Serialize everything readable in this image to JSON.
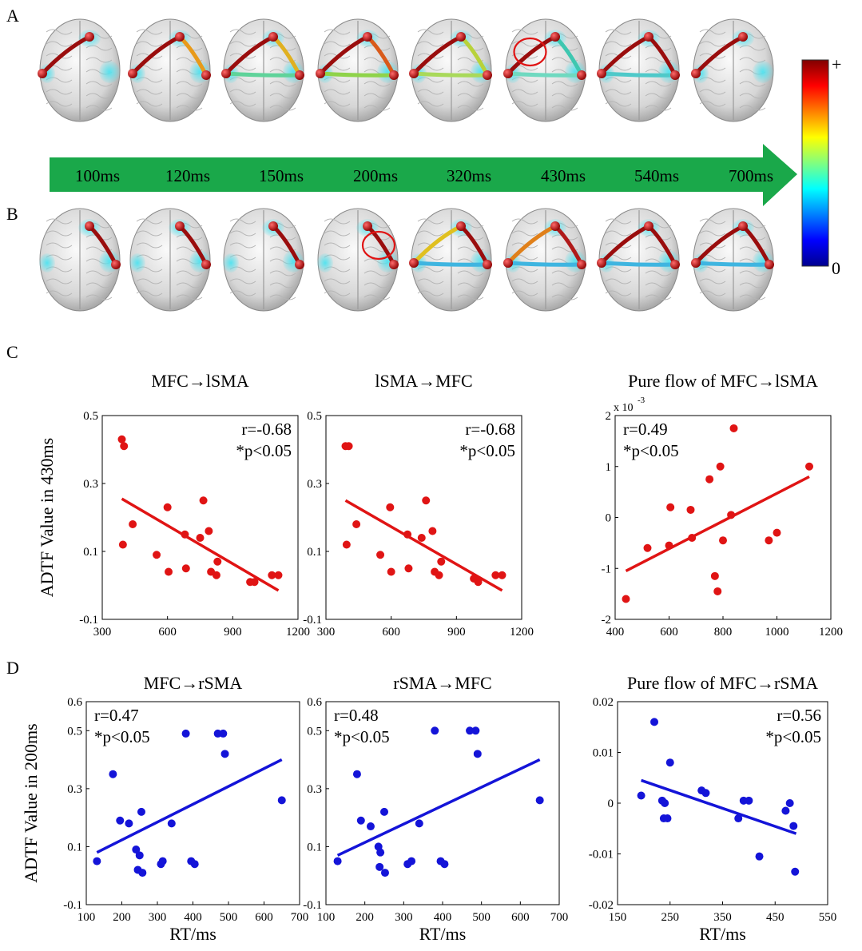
{
  "panels": {
    "A": {
      "letter": "A"
    },
    "B": {
      "letter": "B"
    },
    "C": {
      "letter": "C"
    },
    "D": {
      "letter": "D"
    }
  },
  "timeline": {
    "labels": [
      "100ms",
      "120ms",
      "150ms",
      "200ms",
      "320ms",
      "430ms",
      "540ms",
      "700ms"
    ],
    "arrow_color": "#1aa84a"
  },
  "colorbar": {
    "max_label": "+",
    "min_label": "0",
    "colors": [
      "#00008f",
      "#0000ff",
      "#0080ff",
      "#00ffff",
      "#80ff80",
      "#ffff00",
      "#ff8000",
      "#ff0000",
      "#800000"
    ]
  },
  "brains": {
    "rowA": [
      {
        "edges": [
          [
            "F",
            "L",
            "#9a0d0d"
          ]
        ],
        "circle": false
      },
      {
        "edges": [
          [
            "F",
            "L",
            "#9a0d0d"
          ],
          [
            "F",
            "R",
            "#e89a1a"
          ]
        ],
        "circle": false
      },
      {
        "edges": [
          [
            "F",
            "L",
            "#9a0d0d"
          ],
          [
            "F",
            "R",
            "#e0b020"
          ],
          [
            "L",
            "R",
            "#5fd39a"
          ]
        ],
        "circle": false
      },
      {
        "edges": [
          [
            "F",
            "L",
            "#9a0d0d"
          ],
          [
            "F",
            "R",
            "#d95a1a"
          ],
          [
            "L",
            "R",
            "#8fd34a"
          ]
        ],
        "circle": false
      },
      {
        "edges": [
          [
            "F",
            "L",
            "#9a0d0d"
          ],
          [
            "F",
            "R",
            "#b8d23a"
          ],
          [
            "L",
            "R",
            "#a9d95a"
          ]
        ],
        "circle": false
      },
      {
        "edges": [
          [
            "F",
            "L",
            "#9a0d0d"
          ],
          [
            "F",
            "R",
            "#3ec7b0"
          ],
          [
            "L",
            "R",
            "#6fd9c0"
          ]
        ],
        "circle": true
      },
      {
        "edges": [
          [
            "F",
            "L",
            "#9a0d0d"
          ],
          [
            "F",
            "R",
            "#9a0d0d"
          ],
          [
            "L",
            "R",
            "#4fc9c9"
          ]
        ],
        "circle": false
      },
      {
        "edges": [
          [
            "F",
            "L",
            "#9a0d0d"
          ]
        ],
        "circle": false
      }
    ],
    "rowB": [
      {
        "edges": [
          [
            "F",
            "R",
            "#9a0d0d"
          ]
        ],
        "circle": false
      },
      {
        "edges": [
          [
            "F",
            "R",
            "#9a0d0d"
          ]
        ],
        "circle": false
      },
      {
        "edges": [
          [
            "F",
            "R",
            "#9a0d0d"
          ]
        ],
        "circle": false
      },
      {
        "edges": [
          [
            "F",
            "R",
            "#9a0d0d"
          ]
        ],
        "circle": true
      },
      {
        "edges": [
          [
            "F",
            "R",
            "#9a0d0d"
          ],
          [
            "F",
            "L",
            "#e0c020"
          ],
          [
            "L",
            "R",
            "#3fb5e0"
          ]
        ],
        "circle": false
      },
      {
        "edges": [
          [
            "F",
            "R",
            "#b01a1a"
          ],
          [
            "F",
            "L",
            "#e0801a"
          ],
          [
            "L",
            "R",
            "#3fb5e0"
          ]
        ],
        "circle": false
      },
      {
        "edges": [
          [
            "F",
            "R",
            "#9a0d0d"
          ],
          [
            "F",
            "L",
            "#9a0d0d"
          ],
          [
            "L",
            "R",
            "#3fb5e0"
          ]
        ],
        "circle": false
      },
      {
        "edges": [
          [
            "F",
            "R",
            "#9a0d0d"
          ],
          [
            "F",
            "L",
            "#9a0d0d"
          ],
          [
            "L",
            "R",
            "#3fb5e0"
          ]
        ],
        "circle": false
      }
    ]
  },
  "chart_data": [
    {
      "type": "scatter",
      "row": "C",
      "col": 0,
      "title": "MFC→lSMA",
      "xlim": [
        300,
        1200
      ],
      "ylim": [
        -0.1,
        0.5
      ],
      "xticks": [
        300,
        600,
        900,
        1200
      ],
      "yticks": [
        -0.1,
        0.1,
        0.3,
        0.5
      ],
      "xtick_labels": [
        "300",
        "600",
        "900",
        "1200"
      ],
      "ytick_labels": [
        "-0.1",
        "0.1",
        "0.3",
        "0.5"
      ],
      "ylabel": "ADTF Value in 430ms",
      "xlabel": "",
      "annotation": [
        "r=-0.68",
        "*p<0.05"
      ],
      "annotation_pos": "top-right",
      "color": "#e01414",
      "points": [
        [
          390,
          0.43
        ],
        [
          400,
          0.41
        ],
        [
          395,
          0.12
        ],
        [
          440,
          0.18
        ],
        [
          550,
          0.09
        ],
        [
          600,
          0.23
        ],
        [
          605,
          0.04
        ],
        [
          680,
          0.15
        ],
        [
          685,
          0.05
        ],
        [
          750,
          0.14
        ],
        [
          765,
          0.25
        ],
        [
          790,
          0.16
        ],
        [
          800,
          0.04
        ],
        [
          825,
          0.03
        ],
        [
          830,
          0.07
        ],
        [
          980,
          0.01
        ],
        [
          1000,
          0.01
        ],
        [
          1080,
          0.03
        ],
        [
          1110,
          0.03
        ]
      ],
      "fit": [
        [
          390,
          0.255
        ],
        [
          1110,
          -0.015
        ]
      ]
    },
    {
      "type": "scatter",
      "row": "C",
      "col": 1,
      "title": "lSMA→MFC",
      "xlim": [
        300,
        1200
      ],
      "ylim": [
        -0.1,
        0.5
      ],
      "xticks": [
        300,
        600,
        900,
        1200
      ],
      "yticks": [
        -0.1,
        0.1,
        0.3,
        0.5
      ],
      "xtick_labels": [
        "300",
        "600",
        "900",
        "1200"
      ],
      "ytick_labels": [
        "-0.1",
        "0.1",
        "0.3",
        "0.5"
      ],
      "ylabel": "",
      "xlabel": "",
      "annotation": [
        "r=-0.68",
        "*p<0.05"
      ],
      "annotation_pos": "top-right",
      "color": "#e01414",
      "points": [
        [
          390,
          0.41
        ],
        [
          405,
          0.41
        ],
        [
          395,
          0.12
        ],
        [
          440,
          0.18
        ],
        [
          550,
          0.09
        ],
        [
          595,
          0.23
        ],
        [
          600,
          0.04
        ],
        [
          675,
          0.15
        ],
        [
          680,
          0.05
        ],
        [
          740,
          0.14
        ],
        [
          760,
          0.25
        ],
        [
          790,
          0.16
        ],
        [
          800,
          0.04
        ],
        [
          820,
          0.03
        ],
        [
          830,
          0.07
        ],
        [
          980,
          0.02
        ],
        [
          1000,
          0.01
        ],
        [
          1080,
          0.03
        ],
        [
          1110,
          0.03
        ]
      ],
      "fit": [
        [
          390,
          0.25
        ],
        [
          1110,
          -0.015
        ]
      ]
    },
    {
      "type": "scatter",
      "row": "C",
      "col": 2,
      "title": "Pure flow of MFC→lSMA",
      "xlim": [
        400,
        1200
      ],
      "ylim": [
        -2,
        2
      ],
      "xticks": [
        400,
        600,
        800,
        1000,
        1200
      ],
      "yticks": [
        -2,
        -1,
        0,
        1,
        2
      ],
      "xtick_labels": [
        "400",
        "600",
        "800",
        "1000",
        "1200"
      ],
      "ytick_labels": [
        "-2",
        "-1",
        "0",
        "1",
        "2"
      ],
      "ylabel": "",
      "xlabel": "",
      "exponent": "x 10",
      "exponent_power": "-3",
      "annotation": [
        "r=0.49",
        "*p<0.05"
      ],
      "annotation_pos": "top-left",
      "color": "#e01414",
      "points": [
        [
          440,
          -1.6
        ],
        [
          520,
          -0.6
        ],
        [
          600,
          -0.55
        ],
        [
          605,
          0.2
        ],
        [
          680,
          0.15
        ],
        [
          685,
          -0.4
        ],
        [
          750,
          0.75
        ],
        [
          770,
          -1.15
        ],
        [
          780,
          -1.45
        ],
        [
          790,
          1.0
        ],
        [
          800,
          -0.45
        ],
        [
          830,
          0.05
        ],
        [
          840,
          1.75
        ],
        [
          970,
          -0.45
        ],
        [
          1000,
          -0.3
        ],
        [
          1120,
          1.0
        ]
      ],
      "fit": [
        [
          440,
          -1.05
        ],
        [
          1120,
          0.8
        ]
      ]
    },
    {
      "type": "scatter",
      "row": "D",
      "col": 0,
      "title": "MFC→rSMA",
      "xlim": [
        100,
        700
      ],
      "ylim": [
        -0.1,
        0.6
      ],
      "xticks": [
        100,
        200,
        300,
        400,
        500,
        600,
        700
      ],
      "yticks": [
        -0.1,
        0.1,
        0.3,
        0.5,
        0.6
      ],
      "xtick_labels": [
        "100",
        "200",
        "300",
        "400",
        "500",
        "600",
        "700"
      ],
      "ytick_labels": [
        "-0.1",
        "0.1",
        "0.3",
        "0.5",
        "0.6"
      ],
      "ylabel": "ADTF Value in 200ms",
      "xlabel": "RT/ms",
      "annotation": [
        "r=0.47",
        "*p<0.05"
      ],
      "annotation_pos": "top-left",
      "color": "#1414d8",
      "points": [
        [
          130,
          0.05
        ],
        [
          175,
          0.35
        ],
        [
          195,
          0.19
        ],
        [
          220,
          0.18
        ],
        [
          240,
          0.09
        ],
        [
          245,
          0.02
        ],
        [
          250,
          0.07
        ],
        [
          255,
          0.22
        ],
        [
          258,
          0.01
        ],
        [
          310,
          0.04
        ],
        [
          315,
          0.05
        ],
        [
          340,
          0.18
        ],
        [
          380,
          0.49
        ],
        [
          395,
          0.05
        ],
        [
          405,
          0.04
        ],
        [
          470,
          0.49
        ],
        [
          485,
          0.49
        ],
        [
          490,
          0.42
        ],
        [
          650,
          0.26
        ]
      ],
      "fit": [
        [
          130,
          0.08
        ],
        [
          650,
          0.4
        ]
      ]
    },
    {
      "type": "scatter",
      "row": "D",
      "col": 1,
      "title": "rSMA→MFC",
      "xlim": [
        100,
        700
      ],
      "ylim": [
        -0.1,
        0.6
      ],
      "xticks": [
        100,
        200,
        300,
        400,
        500,
        600,
        700
      ],
      "yticks": [
        -0.1,
        0.1,
        0.3,
        0.5,
        0.6
      ],
      "xtick_labels": [
        "100",
        "200",
        "300",
        "400",
        "500",
        "600",
        "700"
      ],
      "ytick_labels": [
        "-0.1",
        "0.1",
        "0.3",
        "0.5",
        "0.6"
      ],
      "ylabel": "",
      "xlabel": "RT/ms",
      "annotation": [
        "r=0.48",
        "*p<0.05"
      ],
      "annotation_pos": "top-left",
      "color": "#1414d8",
      "points": [
        [
          130,
          0.05
        ],
        [
          180,
          0.35
        ],
        [
          190,
          0.19
        ],
        [
          215,
          0.17
        ],
        [
          235,
          0.1
        ],
        [
          238,
          0.03
        ],
        [
          240,
          0.08
        ],
        [
          250,
          0.22
        ],
        [
          252,
          0.01
        ],
        [
          310,
          0.04
        ],
        [
          320,
          0.05
        ],
        [
          340,
          0.18
        ],
        [
          380,
          0.5
        ],
        [
          395,
          0.05
        ],
        [
          405,
          0.04
        ],
        [
          470,
          0.5
        ],
        [
          485,
          0.5
        ],
        [
          490,
          0.42
        ],
        [
          650,
          0.26
        ]
      ],
      "fit": [
        [
          130,
          0.07
        ],
        [
          650,
          0.4
        ]
      ]
    },
    {
      "type": "scatter",
      "row": "D",
      "col": 2,
      "title": "Pure flow of MFC→rSMA",
      "xlim": [
        150,
        550
      ],
      "ylim": [
        -0.02,
        0.02
      ],
      "xticks": [
        150,
        250,
        350,
        450,
        550
      ],
      "yticks": [
        -0.02,
        -0.01,
        0,
        0.01,
        0.02
      ],
      "xtick_labels": [
        "150",
        "250",
        "350",
        "450",
        "550"
      ],
      "ytick_labels": [
        "-0.02",
        "-0.01",
        "0",
        "0.01",
        "0.02"
      ],
      "ylabel": "",
      "xlabel": "RT/ms",
      "annotation": [
        "r=0.56",
        "*p<0.05"
      ],
      "annotation_pos": "top-right",
      "color": "#1414d8",
      "points": [
        [
          195,
          0.0015
        ],
        [
          220,
          0.016
        ],
        [
          235,
          0.0005
        ],
        [
          238,
          -0.003
        ],
        [
          240,
          0.0
        ],
        [
          245,
          -0.003
        ],
        [
          250,
          0.008
        ],
        [
          310,
          0.0025
        ],
        [
          318,
          0.002
        ],
        [
          380,
          -0.003
        ],
        [
          390,
          0.0005
        ],
        [
          400,
          0.0005
        ],
        [
          420,
          -0.0105
        ],
        [
          470,
          -0.0015
        ],
        [
          478,
          0.0
        ],
        [
          485,
          -0.0045
        ],
        [
          488,
          -0.0135
        ]
      ],
      "fit": [
        [
          195,
          0.0045
        ],
        [
          490,
          -0.006
        ]
      ]
    }
  ]
}
